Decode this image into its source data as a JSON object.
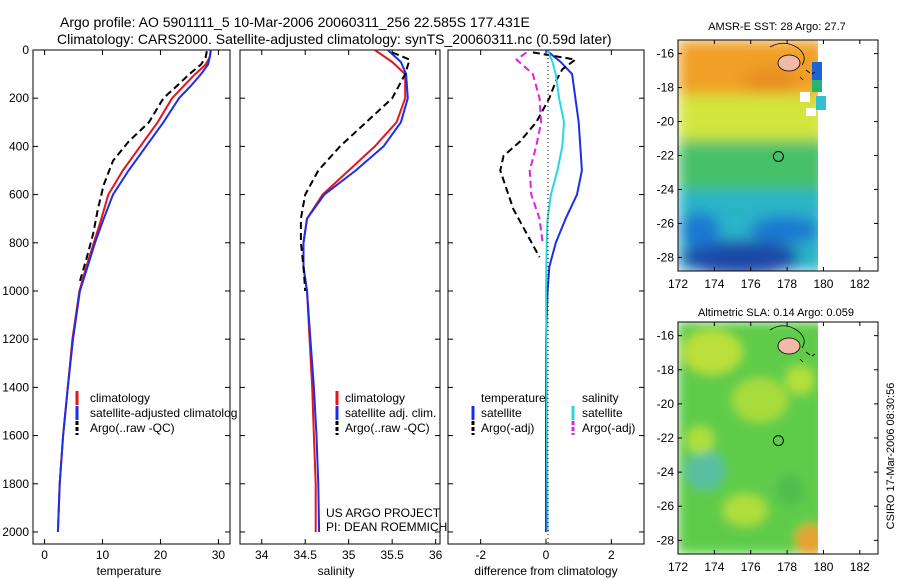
{
  "header": {
    "line1": "Argo profile: AO 5901111_5 10-Mar-2006 20060311_256 22.585S 177.431E",
    "line2": "Climatology: CARS2000. Satellite-adjusted climatology: synTS_20060311.nc (0.59d later)"
  },
  "colors": {
    "climatology": "#e8141a",
    "satellite": "#1c2ee8",
    "argo": "#000000",
    "salinity_satellite": "#28d8e0",
    "salinity_argo": "#e020e0",
    "land": "#f2b8a8"
  },
  "chart_data": [
    {
      "type": "line",
      "xlabel": "temperature",
      "ylabel": "",
      "xlim": [
        -2,
        32
      ],
      "ylim": [
        2050,
        0
      ],
      "xticks": [
        "0",
        "10",
        "20",
        "30"
      ],
      "yticks": [
        "0",
        "200",
        "400",
        "600",
        "800",
        "1000",
        "1200",
        "1400",
        "1600",
        "1800",
        "2000"
      ],
      "series": [
        {
          "name": "climatology",
          "x": [
            28.7,
            28.5,
            27.8,
            26.0,
            24.0,
            22.0,
            19.5,
            16.5,
            13.5,
            11.0,
            9.8,
            8.5,
            7.2,
            6.0,
            4.8,
            4.0,
            3.2,
            2.6,
            2.3
          ],
          "y": [
            0,
            30,
            60,
            100,
            150,
            200,
            300,
            400,
            500,
            600,
            700,
            800,
            900,
            1000,
            1200,
            1400,
            1600,
            1800,
            2000
          ]
        },
        {
          "name": "satellite-adjusted climatology",
          "x": [
            28.7,
            28.5,
            28.2,
            27.0,
            25.2,
            23.2,
            20.5,
            17.5,
            14.5,
            11.8,
            10.2,
            8.7,
            7.4,
            6.1,
            4.9,
            4.0,
            3.2,
            2.6,
            2.3
          ],
          "y": [
            0,
            30,
            60,
            100,
            150,
            200,
            300,
            400,
            500,
            600,
            700,
            800,
            900,
            1000,
            1200,
            1400,
            1600,
            1800,
            2000
          ]
        },
        {
          "name": "Argo(..raw -QC)",
          "x": [
            28.0,
            27.8,
            27.0,
            25.0,
            22.8,
            20.5,
            18.0,
            14.5,
            11.8,
            10.2,
            9.2,
            8.4,
            7.3,
            6.1
          ],
          "y": [
            5,
            30,
            60,
            100,
            150,
            200,
            300,
            380,
            460,
            560,
            660,
            760,
            860,
            960
          ]
        }
      ],
      "legend": [
        "climatology",
        "satellite-adjusted climatology",
        "Argo(..raw -QC)"
      ]
    },
    {
      "type": "line",
      "xlabel": "salinity",
      "xlim": [
        33.75,
        36.05
      ],
      "ylim": [
        2050,
        0
      ],
      "xticks": [
        "34",
        "34.5",
        "35",
        "35.5",
        "36"
      ],
      "series": [
        {
          "name": "climatology",
          "x": [
            35.3,
            35.5,
            35.65,
            35.65,
            35.55,
            35.3,
            35.0,
            34.7,
            34.52,
            34.48,
            34.48,
            34.52,
            34.55,
            34.58,
            34.6,
            34.62,
            34.62
          ],
          "y": [
            0,
            50,
            100,
            200,
            300,
            400,
            500,
            600,
            700,
            800,
            900,
            1000,
            1200,
            1400,
            1600,
            1800,
            2000
          ]
        },
        {
          "name": "satellite adj. clim.",
          "x": [
            35.45,
            35.6,
            35.66,
            35.68,
            35.6,
            35.4,
            35.08,
            34.72,
            34.52,
            34.48,
            34.48,
            34.52,
            34.56,
            34.6,
            34.63,
            34.65,
            34.66
          ],
          "y": [
            0,
            50,
            100,
            200,
            300,
            400,
            500,
            600,
            700,
            800,
            900,
            1000,
            1200,
            1400,
            1600,
            1800,
            2000
          ]
        },
        {
          "name": "Argo(..raw -QC)",
          "x": [
            35.5,
            35.7,
            35.65,
            35.5,
            35.2,
            34.9,
            34.65,
            34.5,
            34.45,
            34.45,
            34.48,
            34.5
          ],
          "y": [
            10,
            40,
            100,
            200,
            300,
            400,
            500,
            600,
            700,
            800,
            900,
            1000
          ]
        }
      ],
      "legend": [
        "climatology",
        "satellite adj. clim.",
        "Argo(..raw -QC)"
      ]
    },
    {
      "type": "line",
      "xlabel": "difference from climatology",
      "xlim": [
        -3,
        3
      ],
      "ylim": [
        2050,
        0
      ],
      "xticks": [
        "-2",
        "0",
        "2"
      ],
      "series": [
        {
          "name": "temperature satellite",
          "x": [
            0,
            0.45,
            0.8,
            0.9,
            1.0,
            1.05,
            1.1,
            0.95,
            0.6,
            0.3,
            0.1,
            0.05,
            0,
            0,
            0,
            0,
            0
          ],
          "y": [
            0,
            50,
            100,
            200,
            300,
            400,
            500,
            600,
            700,
            800,
            900,
            1000,
            1200,
            1400,
            1600,
            1800,
            2000
          ]
        },
        {
          "name": "temperature Argo(-adj)",
          "x": [
            -0.4,
            0.9,
            0.5,
            0.3,
            0.1,
            -0.3,
            -0.8,
            -1.3,
            -1.4,
            -1.2,
            -1.0,
            -0.6,
            -0.2
          ],
          "y": [
            10,
            40,
            80,
            130,
            200,
            300,
            380,
            440,
            500,
            580,
            660,
            760,
            860
          ]
        },
        {
          "name": "salinity satellite",
          "x": [
            0.05,
            0.2,
            0.3,
            0.4,
            0.55,
            0.5,
            0.35,
            0.15,
            0.05,
            0.02,
            0,
            0.01,
            0.02,
            0.03,
            0.04,
            0.05
          ],
          "y": [
            0,
            50,
            100,
            200,
            300,
            400,
            500,
            600,
            700,
            800,
            1000,
            1200,
            1400,
            1600,
            1800,
            2000
          ]
        },
        {
          "name": "salinity Argo(-adj)",
          "x": [
            -0.6,
            -0.9,
            -0.4,
            -0.2,
            -0.15,
            -0.3,
            -0.5,
            -0.45,
            -0.2,
            -0.1
          ],
          "y": [
            10,
            40,
            100,
            200,
            300,
            400,
            500,
            600,
            700,
            800
          ]
        }
      ],
      "legend": [
        "temperature",
        "satellite",
        "Argo(-adj)",
        "salinity",
        "satellite",
        "Argo(-adj)"
      ]
    },
    {
      "type": "heatmap",
      "title": "AMSR-E SST: 28 Argo: 27.7",
      "xlim": [
        172,
        183
      ],
      "ylim": [
        -28.8,
        -15.2
      ],
      "xticks": [
        "172",
        "174",
        "176",
        "178",
        "180",
        "182"
      ],
      "yticks": [
        "-16",
        "-18",
        "-20",
        "-22",
        "-24",
        "-26",
        "-28"
      ],
      "marker": {
        "lon": 177.431,
        "lat": -22.585
      }
    },
    {
      "type": "heatmap",
      "title": "Altimetric SLA: 0.14 Argo: 0.059",
      "xlim": [
        172,
        183
      ],
      "ylim": [
        -28.8,
        -15.2
      ],
      "xticks": [
        "172",
        "174",
        "176",
        "178",
        "180",
        "182"
      ],
      "yticks": [
        "-16",
        "-18",
        "-20",
        "-22",
        "-24",
        "-26",
        "-28"
      ],
      "marker": {
        "lon": 177.431,
        "lat": -22.585
      }
    }
  ],
  "legend_labels": {
    "temp": [
      "climatology",
      "satellite-adjusted climatolog",
      "Argo(..raw -QC)"
    ],
    "sal": [
      "climatology",
      "satellite adj. clim.",
      "Argo(..raw -QC)"
    ],
    "diff_left": [
      "temperature",
      "satellite",
      "Argo(-adj)"
    ],
    "diff_right": [
      "salinity",
      "satellite",
      "Argo(-adj)"
    ]
  },
  "credits": {
    "project": "US ARGO PROJECT",
    "pi": "PI: DEAN ROEMMICH",
    "side": "CSIRO 17-Mar-2006 08:30:56"
  }
}
